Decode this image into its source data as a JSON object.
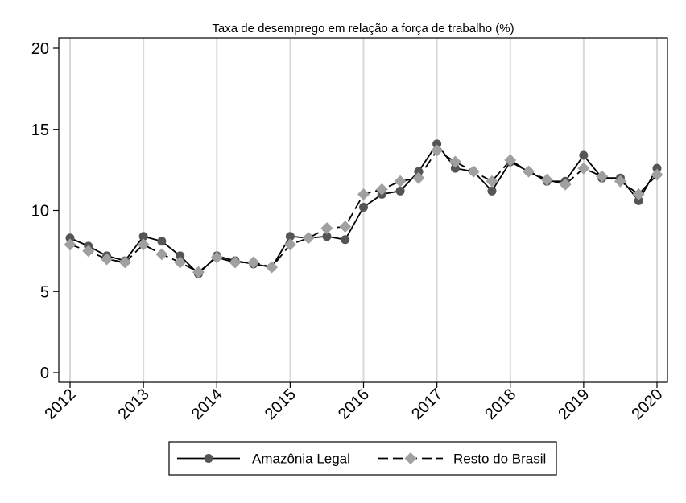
{
  "chart_data": {
    "type": "line",
    "title": "Taxa de desemprego em relação a força de trabalho (%)",
    "xlabel": "",
    "ylabel": "",
    "xlim": [
      2012,
      2020
    ],
    "ylim": [
      0,
      20
    ],
    "yticks": [
      0,
      5,
      10,
      15,
      20
    ],
    "xticks": [
      2012,
      2013,
      2014,
      2015,
      2016,
      2017,
      2018,
      2019,
      2020
    ],
    "x": [
      2012,
      2012.25,
      2012.5,
      2012.75,
      2013,
      2013.25,
      2013.5,
      2013.75,
      2014,
      2014.25,
      2014.5,
      2014.75,
      2015,
      2015.25,
      2015.5,
      2015.75,
      2016,
      2016.25,
      2016.5,
      2016.75,
      2017,
      2017.25,
      2017.5,
      2017.75,
      2018,
      2018.25,
      2018.5,
      2018.75,
      2019,
      2019.25,
      2019.5,
      2019.75,
      2020
    ],
    "series": [
      {
        "name": "Amazônia Legal",
        "color": "#555555",
        "marker": "circle",
        "dash": "solid",
        "values": [
          8.3,
          7.8,
          7.2,
          6.9,
          8.4,
          8.1,
          7.2,
          6.1,
          7.2,
          6.9,
          6.7,
          6.5,
          8.4,
          8.3,
          8.4,
          8.2,
          10.2,
          11.0,
          11.2,
          12.4,
          14.1,
          12.6,
          12.4,
          11.2,
          13.0,
          12.4,
          11.8,
          11.8,
          13.4,
          12.0,
          12.0,
          10.6,
          12.6
        ]
      },
      {
        "name": "Resto do Brasil",
        "color": "#a0a0a0",
        "marker": "diamond",
        "dash": "dashed",
        "values": [
          7.9,
          7.5,
          7.0,
          6.8,
          7.9,
          7.3,
          6.8,
          6.2,
          7.1,
          6.8,
          6.8,
          6.5,
          7.9,
          8.3,
          8.9,
          9.0,
          11.0,
          11.3,
          11.8,
          12.0,
          13.7,
          13.0,
          12.4,
          11.8,
          13.1,
          12.4,
          11.9,
          11.6,
          12.6,
          12.1,
          11.8,
          11.0,
          12.2
        ]
      }
    ],
    "grid": "vertical",
    "legend_position": "bottom"
  }
}
